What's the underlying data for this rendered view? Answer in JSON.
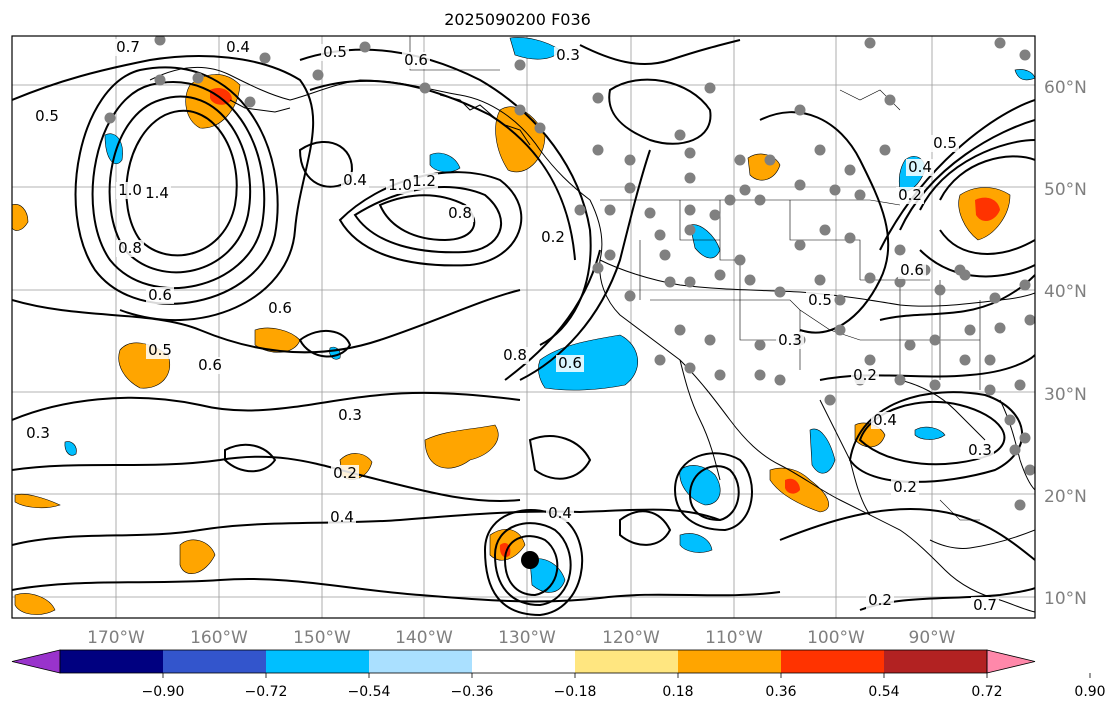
{
  "title": "2025090200 F036",
  "map": {
    "lon_labels": [
      "170°W",
      "160°W",
      "150°W",
      "140°W",
      "130°W",
      "120°W",
      "110°W",
      "100°W",
      "90°W"
    ],
    "lat_labels": [
      "60°N",
      "50°N",
      "40°N",
      "30°N",
      "20°N",
      "10°N"
    ],
    "contour_labels": [
      "0.7",
      "0.5",
      "0.6",
      "0.3",
      "0.5",
      "0.4",
      "1.2",
      "1.0",
      "0.4",
      "0.8",
      "1.4",
      "1.0",
      "0.8",
      "0.6",
      "0.6",
      "0.6",
      "0.5",
      "0.3",
      "0.2",
      "0.4",
      "0.4",
      "0.3",
      "0.2",
      "0.4",
      "0.5",
      "0.6",
      "0.5",
      "0.3",
      "0.2",
      "0.4",
      "0.3",
      "0.2",
      "0.2",
      "0.7",
      "0.8",
      "0.6",
      "0.2"
    ],
    "colors": {
      "positive_fill": "#ffa500",
      "negative_fill": "#00bfff",
      "station": "#808080",
      "contour": "#000000",
      "grid": "#808080"
    }
  },
  "colorbar": {
    "tick_labels": [
      "−0.90",
      "−0.72",
      "−0.54",
      "−0.36",
      "−0.18",
      "0.18",
      "0.36",
      "0.54",
      "0.72",
      "0.90"
    ],
    "colors": [
      "#9933cc",
      "#000080",
      "#3355cc",
      "#00bfff",
      "#aae0ff",
      "#ffffff",
      "#ffe680",
      "#ffa500",
      "#ff3300",
      "#b22222",
      "#ff88aa"
    ]
  }
}
